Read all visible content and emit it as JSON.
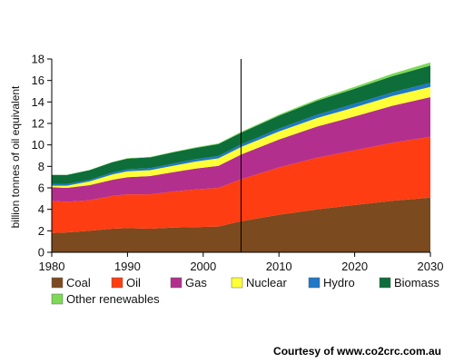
{
  "chart_data": {
    "type": "area",
    "stacked": true,
    "title": "",
    "xlabel": "",
    "ylabel": "billion tonnes of oil equivalent",
    "xlim": [
      1980,
      2030
    ],
    "ylim": [
      0,
      18
    ],
    "x_ticks": [
      1980,
      1990,
      2000,
      2010,
      2020,
      2030
    ],
    "y_ticks": [
      0,
      2,
      4,
      6,
      8,
      10,
      12,
      14,
      16,
      18
    ],
    "grid": false,
    "marker_line_x": 2005,
    "legend_position": "bottom",
    "x": [
      1980,
      1982,
      1985,
      1988,
      1990,
      1993,
      1996,
      1999,
      2002,
      2005,
      2010,
      2015,
      2020,
      2025,
      2030
    ],
    "series": [
      {
        "name": "Coal",
        "color": "#7b4a1e",
        "values": [
          1.8,
          1.85,
          2.0,
          2.2,
          2.25,
          2.2,
          2.3,
          2.35,
          2.4,
          2.9,
          3.5,
          4.0,
          4.4,
          4.8,
          5.1
        ]
      },
      {
        "name": "Oil",
        "color": "#ff3d12",
        "values": [
          3.0,
          2.85,
          2.85,
          3.05,
          3.15,
          3.2,
          3.35,
          3.5,
          3.6,
          3.9,
          4.4,
          4.8,
          5.1,
          5.4,
          5.65
        ]
      },
      {
        "name": "Gas",
        "color": "#b32f8e",
        "values": [
          1.25,
          1.3,
          1.4,
          1.5,
          1.6,
          1.7,
          1.8,
          1.95,
          2.05,
          2.3,
          2.6,
          2.9,
          3.15,
          3.45,
          3.7
        ]
      },
      {
        "name": "Nuclear",
        "color": "#ffff38",
        "values": [
          0.15,
          0.2,
          0.35,
          0.5,
          0.55,
          0.55,
          0.6,
          0.65,
          0.7,
          0.7,
          0.75,
          0.8,
          0.85,
          0.9,
          0.95
        ]
      },
      {
        "name": "Hydro",
        "color": "#1f78c8",
        "values": [
          0.15,
          0.15,
          0.15,
          0.18,
          0.18,
          0.19,
          0.2,
          0.22,
          0.22,
          0.24,
          0.27,
          0.3,
          0.33,
          0.35,
          0.38
        ]
      },
      {
        "name": "Biomass",
        "color": "#0d6e3a",
        "values": [
          0.85,
          0.85,
          0.9,
          0.95,
          1.0,
          1.0,
          1.05,
          1.05,
          1.1,
          1.1,
          1.2,
          1.3,
          1.4,
          1.5,
          1.6
        ]
      },
      {
        "name": "Other renewables",
        "color": "#7ed957",
        "values": [
          0.02,
          0.02,
          0.03,
          0.03,
          0.04,
          0.04,
          0.05,
          0.06,
          0.07,
          0.08,
          0.1,
          0.14,
          0.18,
          0.24,
          0.3
        ]
      }
    ]
  },
  "credit": "Courtesy of www.co2crc.com.au"
}
